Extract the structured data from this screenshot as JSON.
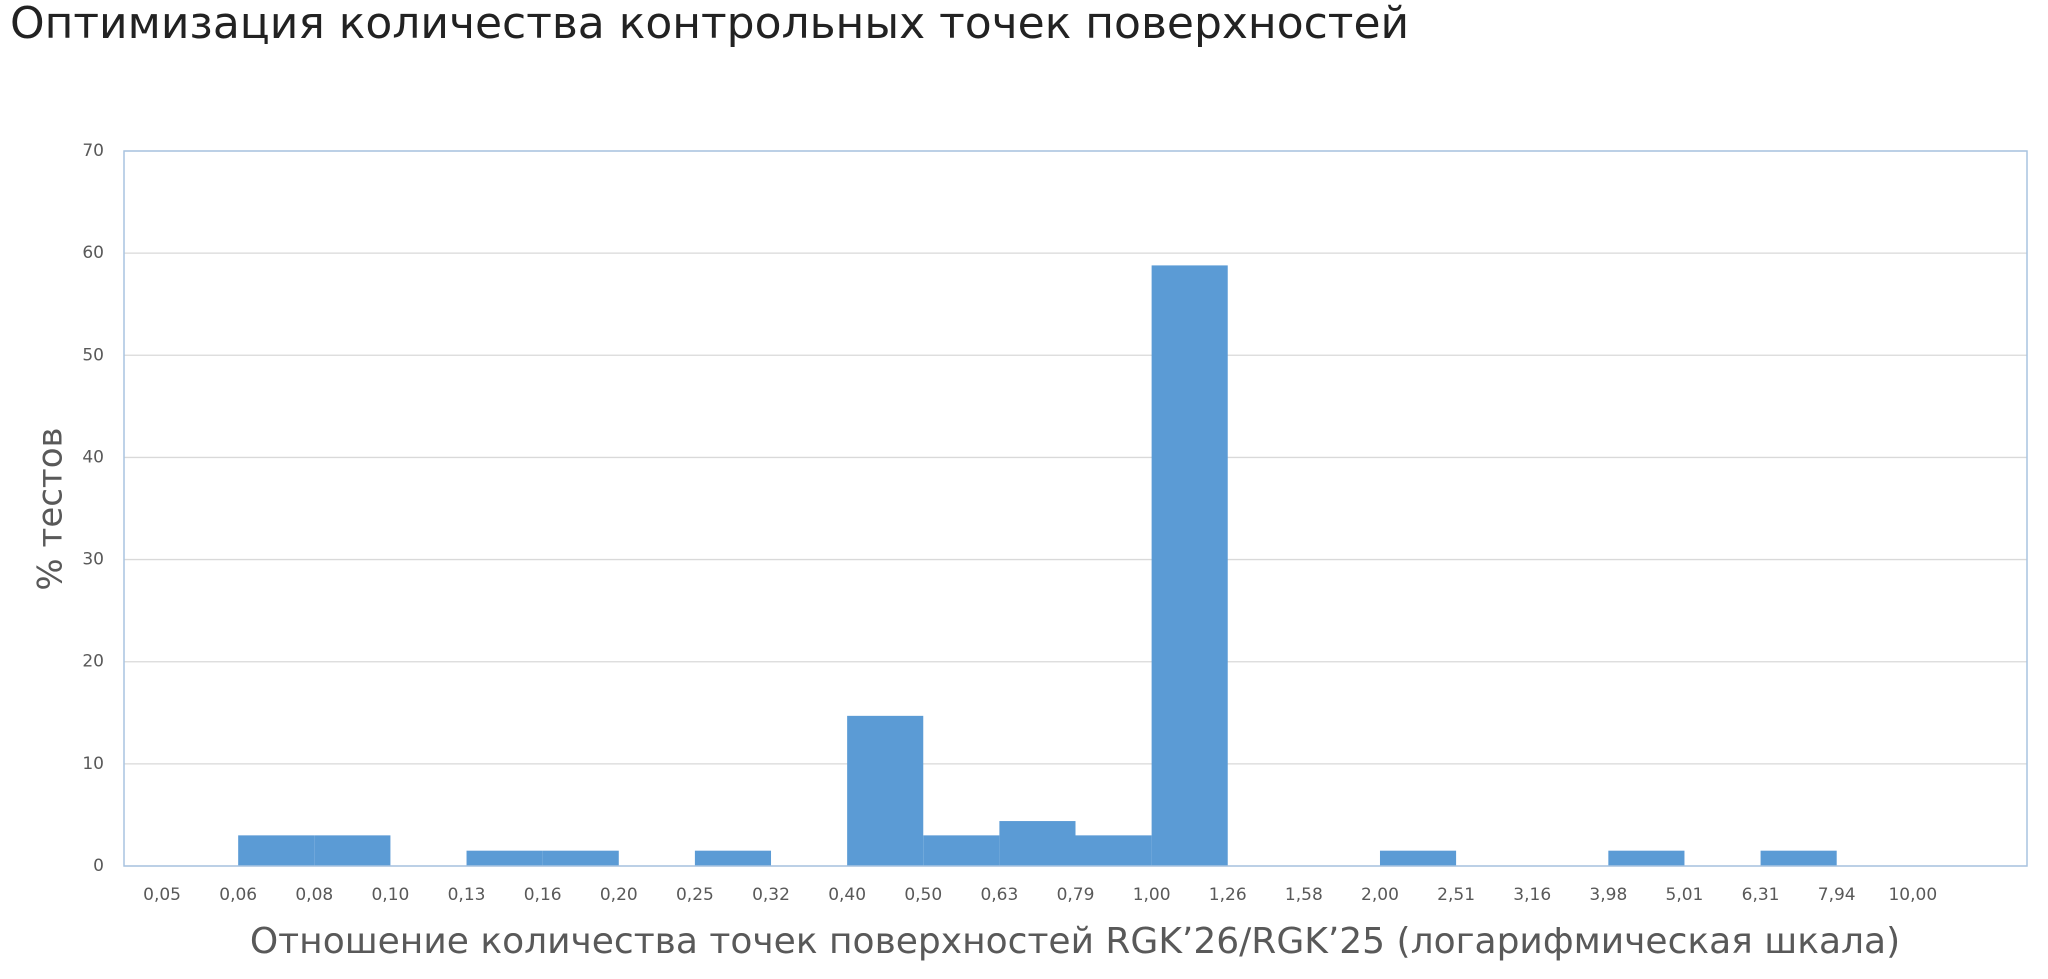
{
  "chart_data": {
    "type": "bar",
    "title": "Оптимизация количества контрольных точек поверхностей",
    "x_label": "Отношение количества точек поверхностей RGK’26/RGK’25 (логарифмическая шкала)",
    "y_label": "% тестов",
    "categories": [
      "0,05",
      "0,06",
      "0,08",
      "0,10",
      "0,13",
      "0,16",
      "0,20",
      "0,25",
      "0,32",
      "0,40",
      "0,50",
      "0,63",
      "0,79",
      "1,00",
      "1,26",
      "1,58",
      "2,00",
      "2,51",
      "3,16",
      "3,98",
      "5,01",
      "6,31",
      "7,94",
      "10,00"
    ],
    "values": [
      0,
      3,
      3,
      0,
      1.5,
      1.5,
      0,
      1.5,
      0,
      14.7,
      3,
      4.4,
      3,
      58.8,
      0,
      0,
      1.5,
      0,
      0,
      1.5,
      0,
      1.5,
      0,
      0
    ],
    "color": "#5b9bd5",
    "ylim": [
      0,
      70
    ],
    "yticks": [
      0,
      10,
      20,
      30,
      40,
      50,
      60,
      70
    ],
    "grid": true
  }
}
